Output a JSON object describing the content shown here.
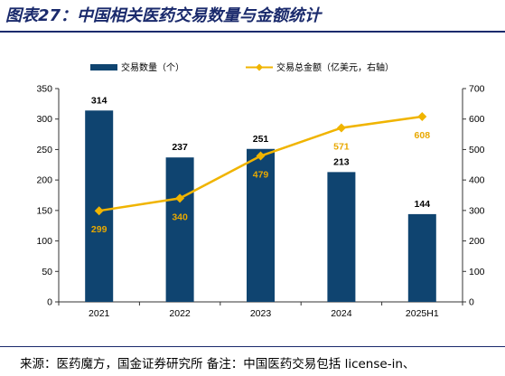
{
  "title": "图表27：中国相关医药交易数量与金额统计",
  "source": "来源：医药魔方，国金证券研究所 备注：中国医药交易包括 license-in、",
  "colors": {
    "bar": "#0f4470",
    "line": "#f0b400",
    "line_label": "#e8a800",
    "title": "#1a2a6c"
  },
  "chart_data": {
    "type": "bar+line",
    "categories": [
      "2021",
      "2022",
      "2023",
      "2024",
      "2025H1"
    ],
    "series": [
      {
        "name": "交易数量（个）",
        "type": "bar",
        "axis": "left",
        "values": [
          314,
          237,
          251,
          213,
          144
        ]
      },
      {
        "name": "交易总金额（亿美元，右轴）",
        "type": "line",
        "axis": "right",
        "values": [
          299,
          340,
          479,
          571,
          608
        ]
      }
    ],
    "ylim_left": [
      0,
      350
    ],
    "yticks_left": [
      0,
      50,
      100,
      150,
      200,
      250,
      300,
      350
    ],
    "ylim_right": [
      0,
      700
    ],
    "yticks_right": [
      0,
      100,
      200,
      300,
      400,
      500,
      600,
      700
    ],
    "legend_position": "top",
    "grid": false
  }
}
